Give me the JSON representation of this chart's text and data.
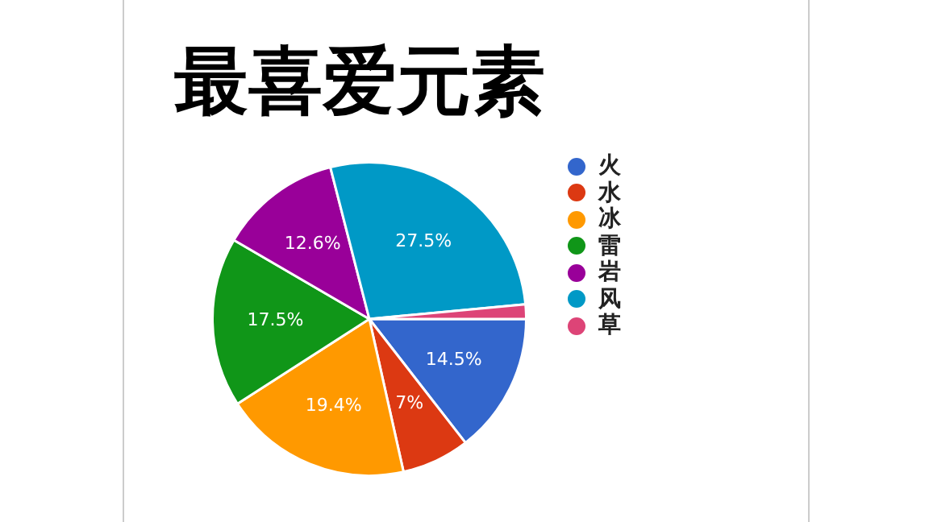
{
  "chart_data": {
    "type": "pie",
    "title": "最喜爱元素",
    "categories": [
      "火",
      "水",
      "冰",
      "雷",
      "岩",
      "风",
      "草"
    ],
    "values": [
      14.5,
      7,
      19.4,
      17.5,
      12.6,
      27.5,
      1.5
    ],
    "colors": [
      "#3366cc",
      "#dc3912",
      "#ff9900",
      "#109618",
      "#990099",
      "#0099c6",
      "#dd4477"
    ],
    "value_labels": [
      "14.5%",
      "7%",
      "19.4%",
      "17.5%",
      "12.6%",
      "27.5%",
      null
    ],
    "legend": "right"
  }
}
